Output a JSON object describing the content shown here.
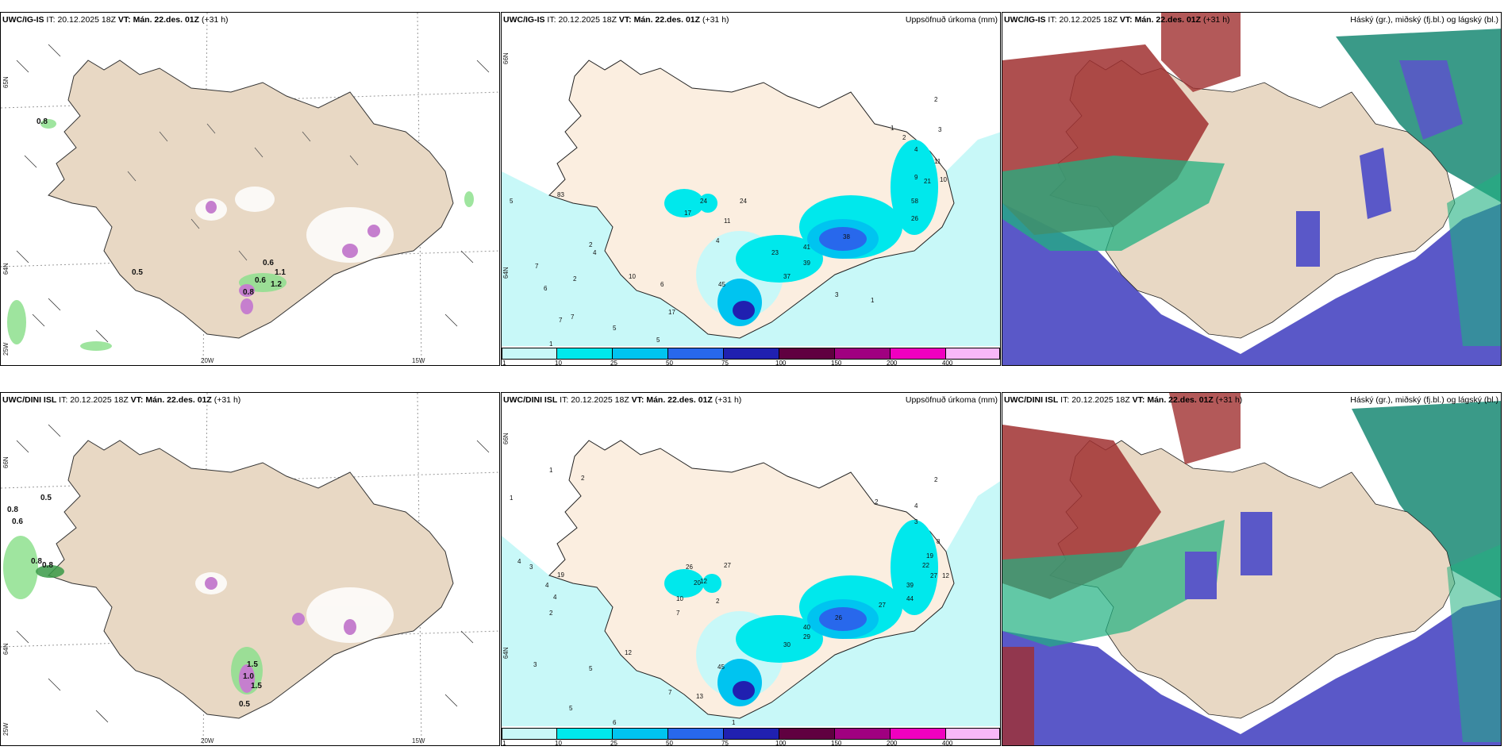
{
  "rows": [
    {
      "model_label": "UWC/IG-IS",
      "it_label": "IT:",
      "it_value": "20.12.2025 18Z",
      "vt_label": "VT:",
      "vt_value": "Mán. 22.des. 01Z",
      "lead": "(+31 h)",
      "wind_labels": [
        "0.8",
        "0.5",
        "0.6",
        "1.1",
        "1.2",
        "0.8",
        "0.6"
      ],
      "precip_labels": [
        "2",
        "1",
        "3",
        "4",
        "2",
        "11",
        "10",
        "9",
        "21",
        "58",
        "26",
        "24",
        "24",
        "17",
        "11",
        "4",
        "23",
        "37",
        "39",
        "41",
        "38",
        "10",
        "6",
        "6",
        "7",
        "7",
        "5",
        "5",
        "7",
        "2",
        "4",
        "1",
        "2",
        "1",
        "3",
        "45",
        "17",
        "5",
        "83"
      ]
    },
    {
      "model_label": "UWC/DINI ISL",
      "it_label": "IT:",
      "it_value": "20.12.2025 18Z",
      "vt_label": "VT:",
      "vt_value": "Mán. 22.des. 01Z",
      "lead": "(+31 h)",
      "wind_labels": [
        "0.5",
        "0.8",
        "0.6",
        "0.8",
        "0.8",
        "1.5",
        "1.0",
        "0.5",
        "1.5"
      ],
      "precip_labels": [
        "1",
        "2",
        "1",
        "2",
        "2",
        "4",
        "3",
        "19",
        "22",
        "27",
        "12",
        "8",
        "39",
        "44",
        "27",
        "26",
        "27",
        "12",
        "30",
        "29",
        "40",
        "26",
        "20",
        "10",
        "2",
        "7",
        "4",
        "3",
        "4",
        "4",
        "5",
        "2",
        "12",
        "13",
        "6",
        "7",
        "3",
        "1",
        "45",
        "19",
        "5"
      ]
    }
  ],
  "precip_title": "Uppsöfnuð úrkoma (mm)",
  "cloud_title": "Háský (gr.), miðský (fj.bl.) og lágský (bl.)",
  "lat_labels": [
    "65N",
    "64N",
    "66N"
  ],
  "lon_labels": [
    "20W",
    "15W",
    "25W"
  ],
  "colorbar": {
    "ticks": [
      "1",
      "10",
      "25",
      "50",
      "75",
      "100",
      "150",
      "200",
      "400"
    ],
    "colors": [
      "#c8f8f8",
      "#00e8ec",
      "#00c4f0",
      "#2868ec",
      "#2020b0",
      "#600040",
      "#a00080",
      "#f000c0",
      "#f8b8f8"
    ]
  },
  "colors": {
    "land": "#e8d8c4",
    "land_precip": "#fbeee0",
    "sea": "#ffffff",
    "wind_green": "#8ee08e",
    "purple": "#c070d0",
    "cloud_high": "#a03030",
    "cloud_mid": "#20b080",
    "cloud_low": "#4a4ac8"
  }
}
